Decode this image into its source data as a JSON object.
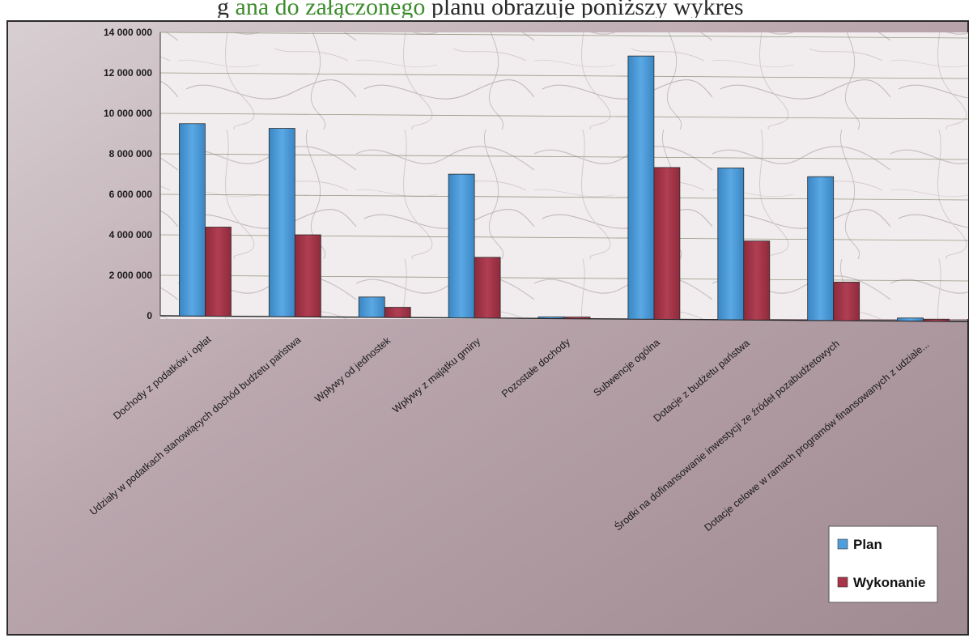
{
  "header_text": {
    "prefix": "g",
    "green_part": "ana do załączonego",
    "dark_part": " planu obrazuje poniższy wykres"
  },
  "colors": {
    "plan": "#4f9fdd",
    "wykonanie": "#a9354a",
    "frame": "#b9a6ad",
    "plot_bg": "#efe9eb",
    "header_green": "#3d8c2d"
  },
  "chart_data": {
    "type": "bar",
    "title": "",
    "xlabel": "",
    "ylabel": "",
    "ylim": [
      0,
      14000000
    ],
    "y_ticks": [
      "0",
      "2 000 000",
      "4 000 000",
      "6 000 000",
      "8 000 000",
      "10 000 000",
      "12 000 000",
      "14 000 000"
    ],
    "categories": [
      "Dochody z podatków i opłat",
      "Udziały w podatkach stanowiących dochód budżetu państwa",
      "Wpływy od jednostek",
      "Wpływy z majątku gminy",
      "Pozostałe dochody",
      "Subwencje ogólna",
      "Dotacje z budżetu państwa",
      "Środki na dofinansowanie inwestycji ze źródeł pozabudżetowych",
      "Dotacje celowe w ramach programów finansowanych z udziale..."
    ],
    "series": [
      {
        "name": "Plan",
        "values": [
          9500000,
          9300000,
          1000000,
          7100000,
          50000,
          13000000,
          7500000,
          7100000,
          150000
        ]
      },
      {
        "name": "Wykonanie",
        "values": [
          4400000,
          4050000,
          500000,
          3000000,
          50000,
          7500000,
          3900000,
          1900000,
          100000
        ]
      }
    ],
    "grid": true,
    "legend_position": "bottom-right"
  }
}
